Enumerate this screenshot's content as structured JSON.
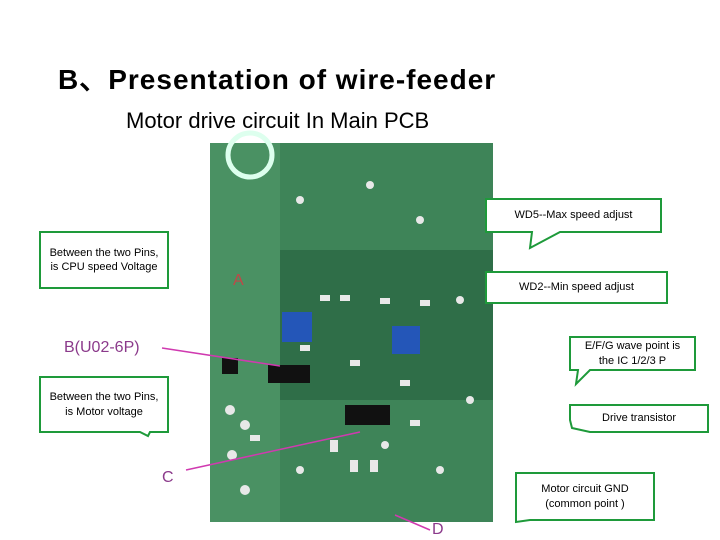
{
  "header": {
    "title": "B、Presentation of wire-feeder",
    "subtitle": "Motor drive circuit  In  Main PCB"
  },
  "callouts": [
    {
      "text": "WD5--Max speed adjust"
    },
    {
      "text": "Between the two Pins, is CPU speed Voltage"
    },
    {
      "text": "WD2--Min speed adjust"
    },
    {
      "text": "E/F/G wave point is the IC 1/2/3 P"
    },
    {
      "text": "Between the two Pins, is Motor voltage"
    },
    {
      "text": "Drive transistor"
    },
    {
      "text": "Motor circuit GND (common point )"
    }
  ],
  "labels": [
    "A",
    "B(U02-6P)",
    "C",
    "D"
  ]
}
